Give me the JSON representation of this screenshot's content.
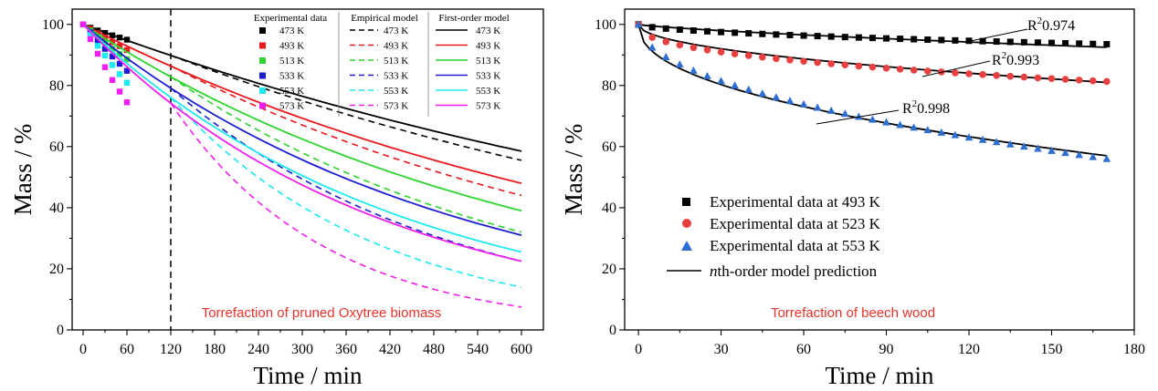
{
  "chart_data": [
    {
      "type": "line",
      "xlabel": "Time / min",
      "ylabel": "Mass / %",
      "xlim": [
        -15,
        630
      ],
      "ylim": [
        0,
        105
      ],
      "xticks": [
        0,
        60,
        120,
        180,
        240,
        300,
        360,
        420,
        480,
        540,
        600
      ],
      "yticks": [
        0,
        20,
        40,
        60,
        80,
        100
      ],
      "caption": "Torrefaction of pruned Oxytree biomass",
      "caption_color": "#e8342a",
      "vline_x": 120,
      "legend_headers": [
        "Experimental data",
        "Empirical model",
        "First-order model"
      ],
      "legend_position": "top-right",
      "series": [
        {
          "name": "473 K",
          "color": "#000000",
          "exp_x": [
            0,
            10,
            20,
            30,
            40,
            50,
            60
          ],
          "exp_y": [
            100,
            98.9,
            98.0,
            97.2,
            96.4,
            95.7,
            95.0
          ],
          "empirical_y600": 55.5,
          "first_order_y600": 58.5
        },
        {
          "name": "493 K",
          "color": "#e8191c",
          "exp_x": [
            0,
            10,
            20,
            30,
            40,
            50,
            60
          ],
          "exp_y": [
            100,
            98.6,
            97.1,
            95.7,
            94.2,
            92.9,
            91.6
          ],
          "empirical_y600": 44,
          "first_order_y600": 48
        },
        {
          "name": "513 K",
          "color": "#2dd42d",
          "exp_x": [
            0,
            10,
            20,
            30,
            40,
            50,
            60
          ],
          "exp_y": [
            100,
            98.0,
            95.9,
            94.0,
            92.0,
            90.3,
            88.6
          ],
          "empirical_y600": 32,
          "first_order_y600": 39
        },
        {
          "name": "533 K",
          "color": "#1c1cd0",
          "exp_x": [
            0,
            10,
            20,
            30,
            40,
            50,
            60
          ],
          "exp_y": [
            100,
            97.4,
            94.7,
            92.0,
            89.5,
            87.1,
            84.8
          ],
          "empirical_y600": 22.5,
          "first_order_y600": 31
        },
        {
          "name": "553 K",
          "color": "#1ee8f0",
          "exp_x": [
            0,
            10,
            20,
            30,
            40,
            50,
            60
          ],
          "exp_y": [
            100,
            96.5,
            93.0,
            89.8,
            86.7,
            83.7,
            80.9
          ],
          "empirical_y600": 14,
          "first_order_y600": 25.5
        },
        {
          "name": "573 K",
          "color": "#f01ef0",
          "exp_x": [
            0,
            10,
            20,
            30,
            40,
            50,
            60
          ],
          "exp_y": [
            100,
            95.2,
            90.4,
            86.0,
            81.8,
            78.0,
            74.5
          ],
          "empirical_y600": 7.5,
          "first_order_y600": 22.5
        }
      ]
    },
    {
      "type": "scatter",
      "xlabel": "Time / min",
      "ylabel": "Mass / %",
      "xlim": [
        -5,
        180
      ],
      "ylim": [
        0,
        105
      ],
      "xticks": [
        0,
        30,
        60,
        90,
        120,
        150,
        180
      ],
      "yticks": [
        0,
        20,
        40,
        60,
        80,
        100
      ],
      "caption": "Torrefaction of beech wood",
      "caption_color": "#e8342a",
      "legend_position": "bottom-left",
      "model_label": "nth-order model prediction",
      "series": [
        {
          "name": "Experimental data at 493 K",
          "marker": "square",
          "color": "#000000",
          "r2": "0.974",
          "final": 93.5,
          "fit_final": 92.5
        },
        {
          "name": "Experimental data at 523 K",
          "marker": "circle",
          "color": "#e84040",
          "r2": "0.993",
          "final": 81.3,
          "fit_final": 81.0
        },
        {
          "name": "Experimental data at 553 K",
          "marker": "triangle",
          "color": "#2d6fd0",
          "r2": "0.998",
          "final": 56.0,
          "fit_final": 57.0
        }
      ]
    }
  ]
}
